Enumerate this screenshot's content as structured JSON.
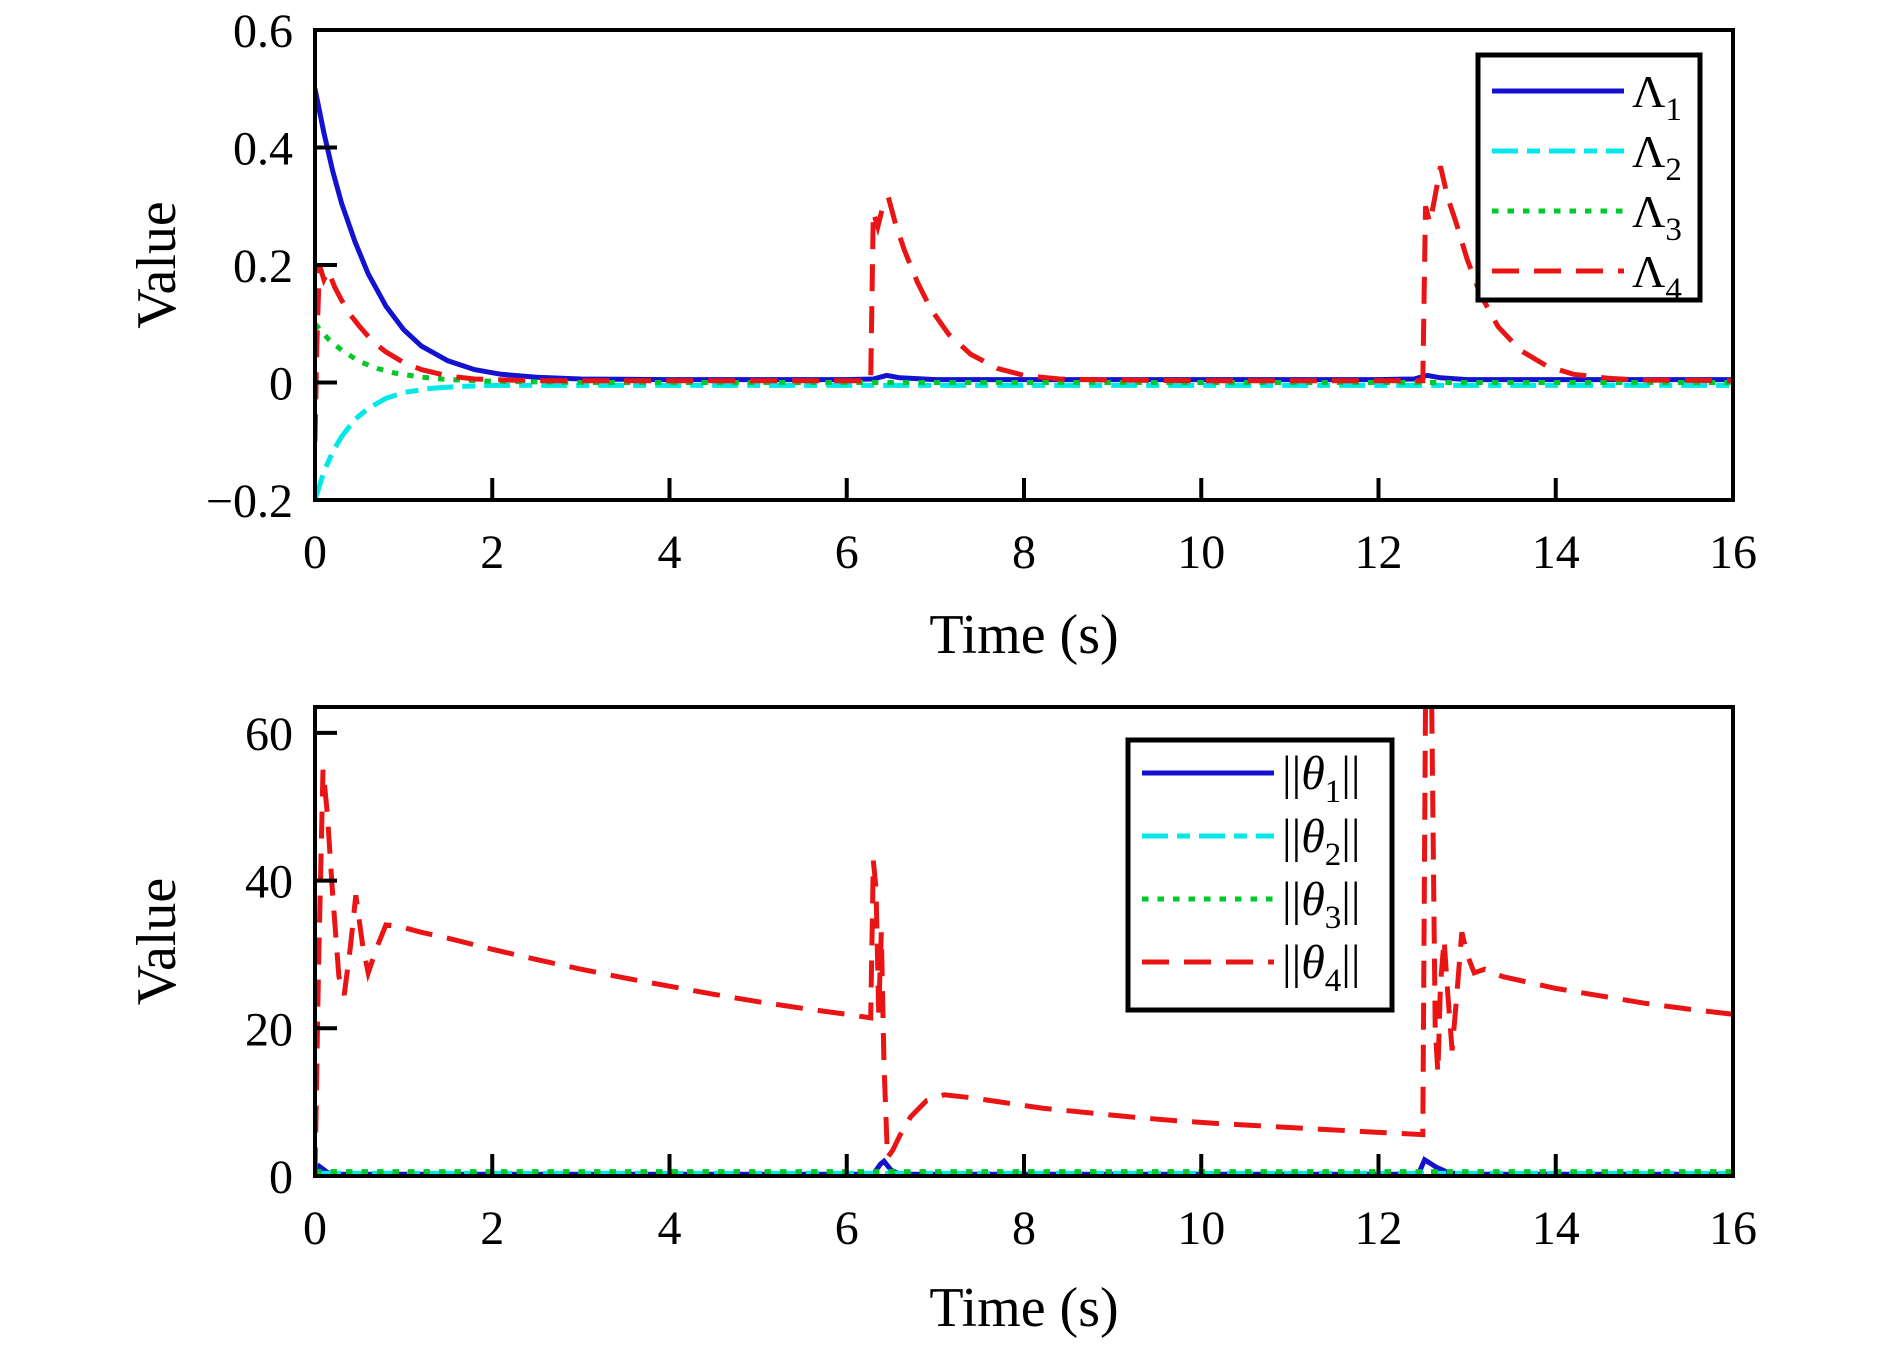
{
  "figure": {
    "background": "#ffffff",
    "axis_color": "#000000"
  },
  "chart_data": [
    {
      "type": "line",
      "title": "",
      "xlabel": "Time (s)",
      "ylabel": "Value",
      "xlim": [
        0,
        16
      ],
      "ylim": [
        -0.2,
        0.6
      ],
      "grid": false,
      "legend_position": "upper right",
      "x_ticks": [
        {
          "v": 0,
          "label": "0"
        },
        {
          "v": 2,
          "label": "2"
        },
        {
          "v": 4,
          "label": "4"
        },
        {
          "v": 6,
          "label": "6"
        },
        {
          "v": 8,
          "label": "8"
        },
        {
          "v": 10,
          "label": "10"
        },
        {
          "v": 12,
          "label": "12"
        },
        {
          "v": 14,
          "label": "14"
        },
        {
          "v": 16,
          "label": "16"
        }
      ],
      "y_ticks": [
        {
          "v": 0.6,
          "label": "0.6"
        },
        {
          "v": 0.4,
          "label": "0.4"
        },
        {
          "v": 0.2,
          "label": "0.2"
        },
        {
          "v": 0,
          "label": "0"
        },
        {
          "v": -0.2,
          "label": "−0.2"
        }
      ],
      "series": [
        {
          "id": "lambda1",
          "name": "Lambda_1",
          "color": "#1212d0",
          "style": "solid",
          "label_parts": [
            {
              "text": "Λ"
            },
            {
              "text": "1",
              "sub": true
            }
          ],
          "points": [
            [
              0,
              0.5
            ],
            [
              0.1,
              0.425
            ],
            [
              0.2,
              0.36
            ],
            [
              0.3,
              0.305
            ],
            [
              0.45,
              0.24
            ],
            [
              0.6,
              0.185
            ],
            [
              0.8,
              0.13
            ],
            [
              1.0,
              0.09
            ],
            [
              1.2,
              0.062
            ],
            [
              1.5,
              0.037
            ],
            [
              1.8,
              0.022
            ],
            [
              2.1,
              0.014
            ],
            [
              2.5,
              0.009
            ],
            [
              3,
              0.006
            ],
            [
              4,
              0.005
            ],
            [
              5,
              0.005
            ],
            [
              6,
              0.005
            ],
            [
              6.3,
              0.006
            ],
            [
              6.45,
              0.012
            ],
            [
              6.6,
              0.008
            ],
            [
              7,
              0.005
            ],
            [
              8,
              0.005
            ],
            [
              10,
              0.005
            ],
            [
              12,
              0.005
            ],
            [
              12.4,
              0.006
            ],
            [
              12.55,
              0.012
            ],
            [
              12.7,
              0.008
            ],
            [
              13,
              0.005
            ],
            [
              14,
              0.005
            ],
            [
              16,
              0.005
            ]
          ]
        },
        {
          "id": "lambda2",
          "name": "Lambda_2",
          "color": "#00e8e8",
          "style": "dashdot",
          "label_parts": [
            {
              "text": "Λ"
            },
            {
              "text": "2",
              "sub": true
            }
          ],
          "points": [
            [
              0,
              -0.2
            ],
            [
              0.1,
              -0.152
            ],
            [
              0.2,
              -0.118
            ],
            [
              0.3,
              -0.092
            ],
            [
              0.45,
              -0.063
            ],
            [
              0.6,
              -0.044
            ],
            [
              0.8,
              -0.027
            ],
            [
              1.0,
              -0.017
            ],
            [
              1.3,
              -0.01
            ],
            [
              1.6,
              -0.007
            ],
            [
              2,
              -0.005
            ],
            [
              2.5,
              -0.005
            ],
            [
              3,
              -0.005
            ],
            [
              4,
              -0.005
            ],
            [
              6,
              -0.005
            ],
            [
              8,
              -0.005
            ],
            [
              10,
              -0.005
            ],
            [
              12,
              -0.005
            ],
            [
              14,
              -0.005
            ],
            [
              16,
              -0.005
            ]
          ]
        },
        {
          "id": "lambda3",
          "name": "Lambda_3",
          "color": "#00c828",
          "style": "dotted",
          "label_parts": [
            {
              "text": "Λ"
            },
            {
              "text": "3",
              "sub": true
            }
          ],
          "points": [
            [
              0,
              0.1
            ],
            [
              0.15,
              0.074
            ],
            [
              0.3,
              0.055
            ],
            [
              0.5,
              0.036
            ],
            [
              0.7,
              0.024
            ],
            [
              0.9,
              0.016
            ],
            [
              1.2,
              0.009
            ],
            [
              1.5,
              0.005
            ],
            [
              2,
              0.002
            ],
            [
              2.5,
              0.001
            ],
            [
              3,
              0
            ],
            [
              4,
              0
            ],
            [
              6,
              0
            ],
            [
              8,
              0
            ],
            [
              10,
              0
            ],
            [
              12,
              0
            ],
            [
              14,
              0
            ],
            [
              16,
              0
            ]
          ]
        },
        {
          "id": "lambda4",
          "name": "Lambda_4",
          "color": "#ea1414",
          "style": "dashed",
          "label_parts": [
            {
              "text": "Λ"
            },
            {
              "text": "4",
              "sub": true
            }
          ],
          "points": [
            [
              0,
              -0.1
            ],
            [
              0.02,
              0.06
            ],
            [
              0.05,
              0.2
            ],
            [
              0.1,
              0.175
            ],
            [
              0.15,
              0.19
            ],
            [
              0.22,
              0.163
            ],
            [
              0.3,
              0.14
            ],
            [
              0.4,
              0.115
            ],
            [
              0.5,
              0.096
            ],
            [
              0.65,
              0.07
            ],
            [
              0.8,
              0.052
            ],
            [
              1.0,
              0.034
            ],
            [
              1.2,
              0.022
            ],
            [
              1.5,
              0.011
            ],
            [
              1.8,
              0.006
            ],
            [
              2.2,
              0.004
            ],
            [
              2.6,
              0.003
            ],
            [
              3,
              0.003
            ],
            [
              4,
              0.003
            ],
            [
              5,
              0.003
            ],
            [
              6,
              0.003
            ],
            [
              6.27,
              0.003
            ],
            [
              6.3,
              0.29
            ],
            [
              6.35,
              0.265
            ],
            [
              6.4,
              0.295
            ],
            [
              6.47,
              0.315
            ],
            [
              6.55,
              0.27
            ],
            [
              6.65,
              0.225
            ],
            [
              6.8,
              0.17
            ],
            [
              6.95,
              0.125
            ],
            [
              7.15,
              0.082
            ],
            [
              7.4,
              0.048
            ],
            [
              7.7,
              0.024
            ],
            [
              8,
              0.012
            ],
            [
              8.4,
              0.006
            ],
            [
              9,
              0.004
            ],
            [
              10,
              0.003
            ],
            [
              11,
              0.003
            ],
            [
              12,
              0.003
            ],
            [
              12.5,
              0.003
            ],
            [
              12.53,
              0.3
            ],
            [
              12.58,
              0.272
            ],
            [
              12.63,
              0.31
            ],
            [
              12.7,
              0.368
            ],
            [
              12.78,
              0.315
            ],
            [
              12.88,
              0.27
            ],
            [
              13.0,
              0.21
            ],
            [
              13.15,
              0.15
            ],
            [
              13.35,
              0.095
            ],
            [
              13.6,
              0.055
            ],
            [
              13.9,
              0.028
            ],
            [
              14.2,
              0.014
            ],
            [
              14.6,
              0.007
            ],
            [
              15,
              0.004
            ],
            [
              16,
              0.003
            ]
          ]
        }
      ]
    },
    {
      "type": "line",
      "title": "",
      "xlabel": "Time (s)",
      "ylabel": "Value",
      "xlim": [
        0,
        16
      ],
      "ylim": [
        0,
        63.5
      ],
      "grid": false,
      "legend_position": "upper right",
      "x_ticks": [
        {
          "v": 0,
          "label": "0"
        },
        {
          "v": 2,
          "label": "2"
        },
        {
          "v": 4,
          "label": "4"
        },
        {
          "v": 6,
          "label": "6"
        },
        {
          "v": 8,
          "label": "8"
        },
        {
          "v": 10,
          "label": "10"
        },
        {
          "v": 12,
          "label": "12"
        },
        {
          "v": 14,
          "label": "14"
        },
        {
          "v": 16,
          "label": "16"
        }
      ],
      "y_ticks": [
        {
          "v": 60,
          "label": "60"
        },
        {
          "v": 40,
          "label": "40"
        },
        {
          "v": 20,
          "label": "20"
        },
        {
          "v": 0,
          "label": "0"
        }
      ],
      "series": [
        {
          "id": "theta1",
          "name": "||theta_1||",
          "color": "#1212d0",
          "style": "solid",
          "label_parts": [
            {
              "text": "||"
            },
            {
              "text": "θ",
              "italic": true
            },
            {
              "text": "1",
              "sub": true
            },
            {
              "text": "||"
            }
          ],
          "points": [
            [
              0,
              0.3
            ],
            [
              0.05,
              1.3
            ],
            [
              0.15,
              0.4
            ],
            [
              0.3,
              0.25
            ],
            [
              6.3,
              0.25
            ],
            [
              6.38,
              1.6
            ],
            [
              6.42,
              2.0
            ],
            [
              6.5,
              0.8
            ],
            [
              6.6,
              0.25
            ],
            [
              12.45,
              0.25
            ],
            [
              12.52,
              2.2
            ],
            [
              12.65,
              1.2
            ],
            [
              12.8,
              0.4
            ],
            [
              13,
              0.25
            ],
            [
              16,
              0.25
            ]
          ]
        },
        {
          "id": "theta2",
          "name": "||theta_2||",
          "color": "#00e8e8",
          "style": "dashdot",
          "label_parts": [
            {
              "text": "||"
            },
            {
              "text": "θ",
              "italic": true
            },
            {
              "text": "2",
              "sub": true
            },
            {
              "text": "||"
            }
          ],
          "points": [
            [
              0,
              0.35
            ],
            [
              16,
              0.35
            ]
          ]
        },
        {
          "id": "theta3",
          "name": "||theta_3||",
          "color": "#00c828",
          "style": "dotted",
          "label_parts": [
            {
              "text": "||"
            },
            {
              "text": "θ",
              "italic": true
            },
            {
              "text": "3",
              "sub": true
            },
            {
              "text": "||"
            }
          ],
          "points": [
            [
              0,
              0.6
            ],
            [
              16,
              0.6
            ]
          ]
        },
        {
          "id": "theta4",
          "name": "||theta_4||",
          "color": "#ea1414",
          "style": "dashed",
          "label_parts": [
            {
              "text": "||"
            },
            {
              "text": "θ",
              "italic": true
            },
            {
              "text": "4",
              "sub": true
            },
            {
              "text": "||"
            }
          ],
          "points": [
            [
              0,
              0.2
            ],
            [
              0.04,
              28
            ],
            [
              0.09,
              55
            ],
            [
              0.14,
              49
            ],
            [
              0.2,
              38
            ],
            [
              0.27,
              27
            ],
            [
              0.33,
              24.5
            ],
            [
              0.4,
              31
            ],
            [
              0.46,
              38
            ],
            [
              0.54,
              31
            ],
            [
              0.6,
              27.5
            ],
            [
              0.7,
              31
            ],
            [
              0.8,
              34
            ],
            [
              0.95,
              33.8
            ],
            [
              1.2,
              33
            ],
            [
              1.5,
              32.2
            ],
            [
              2,
              30.7
            ],
            [
              2.5,
              29.3
            ],
            [
              3,
              28
            ],
            [
              3.5,
              26.8
            ],
            [
              4,
              25.7
            ],
            [
              4.5,
              24.6
            ],
            [
              5,
              23.6
            ],
            [
              5.5,
              22.7
            ],
            [
              6,
              21.9
            ],
            [
              6.27,
              21.4
            ],
            [
              6.3,
              42.7
            ],
            [
              6.33,
              39
            ],
            [
              6.36,
              22
            ],
            [
              6.39,
              33
            ],
            [
              6.42,
              15
            ],
            [
              6.46,
              2.5
            ],
            [
              6.52,
              3.5
            ],
            [
              6.6,
              5.5
            ],
            [
              6.72,
              8
            ],
            [
              6.9,
              10.2
            ],
            [
              7.1,
              11
            ],
            [
              7.4,
              10.6
            ],
            [
              7.8,
              9.9
            ],
            [
              8.2,
              9.2
            ],
            [
              8.7,
              8.6
            ],
            [
              9.2,
              8.0
            ],
            [
              9.7,
              7.5
            ],
            [
              10.2,
              7.1
            ],
            [
              10.8,
              6.7
            ],
            [
              11.4,
              6.3
            ],
            [
              12,
              5.9
            ],
            [
              12.5,
              5.6
            ],
            [
              12.53,
              64
            ],
            [
              12.6,
              64
            ],
            [
              12.64,
              20
            ],
            [
              12.67,
              14
            ],
            [
              12.7,
              26
            ],
            [
              12.74,
              32
            ],
            [
              12.78,
              25
            ],
            [
              12.83,
              17
            ],
            [
              12.88,
              24
            ],
            [
              12.94,
              33
            ],
            [
              13.0,
              30
            ],
            [
              13.08,
              27.5
            ],
            [
              13.2,
              28
            ],
            [
              13.4,
              27
            ],
            [
              13.7,
              26.2
            ],
            [
              14,
              25.4
            ],
            [
              14.5,
              24.4
            ],
            [
              15,
              23.4
            ],
            [
              15.5,
              22.6
            ],
            [
              16,
              21.9
            ]
          ]
        }
      ]
    }
  ]
}
